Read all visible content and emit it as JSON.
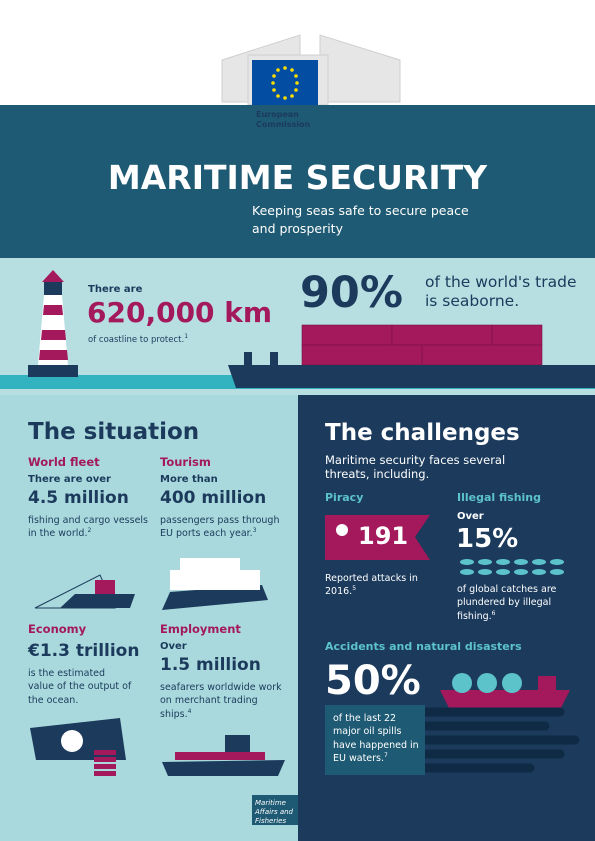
{
  "header": {
    "logo_text": [
      "European",
      "Commission"
    ],
    "title": "MARITIME SECURITY",
    "subtitle": "Keeping seas safe to secure peace and prosperity"
  },
  "hero": {
    "coastline": {
      "intro": "There are",
      "figure": "620,000 km",
      "text": "of coastline to protect.",
      "note": "1"
    },
    "trade": {
      "figure": "90%",
      "text": "of the world's trade is seaborne."
    }
  },
  "situation": {
    "title": "The situation",
    "items": [
      {
        "heading": "World fleet",
        "intro": "There are over",
        "figure": "4.5 million",
        "text": "fishing and cargo vessels in the world.",
        "note": "2"
      },
      {
        "heading": "Tourism",
        "intro": "More than",
        "figure": "400 million",
        "text": "passengers pass through EU ports each year.",
        "note": "3"
      },
      {
        "heading": "Economy",
        "figure": "€1.3 trillion",
        "text": "is the estimated value of the output of the ocean."
      },
      {
        "heading": "Employment",
        "intro": "Over",
        "figure": "1.5 million",
        "text": "seafarers worldwide work on merchant trading ships.",
        "note": "4"
      }
    ]
  },
  "challenges": {
    "title": "The challenges",
    "intro": "Maritime security faces several threats, including.",
    "piracy": {
      "heading": "Piracy",
      "figure": "191",
      "text": "Reported attacks in 2016.",
      "note": "5"
    },
    "fishing": {
      "heading": "Illegal fishing",
      "intro": "Over",
      "figure": "15%",
      "text": "of global catches are plundered by illegal fishing.",
      "note": "6"
    },
    "accidents": {
      "heading": "Accidents and natural disasters",
      "figure": "50%",
      "text": "of the last 22 major oil spills have happened in EU waters.",
      "note": "7"
    }
  },
  "footer": {
    "text": "Maritime Affairs and Fisheries"
  }
}
